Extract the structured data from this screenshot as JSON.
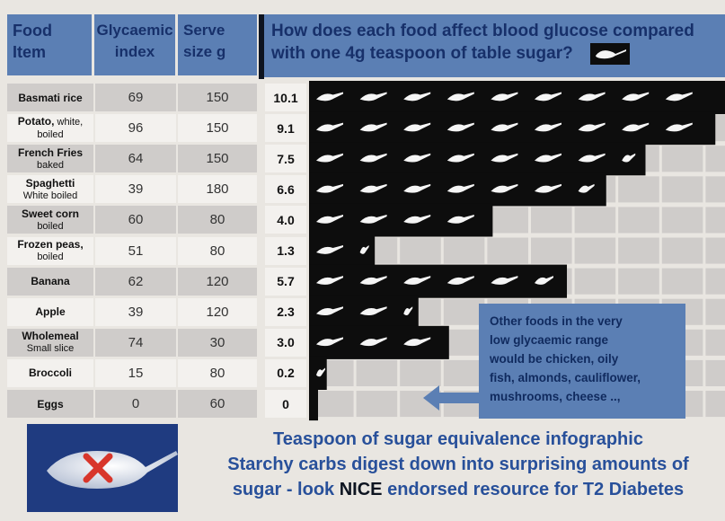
{
  "header": {
    "food_line1": "Food",
    "food_line2": "Item",
    "gi_line1": "Glycaemic",
    "gi_line2": "index",
    "serve_line1": "Serve",
    "serve_line2": "size g",
    "question_line1": "How does each food affect blood glucose compared",
    "question_line2": "with one 4g teaspoon of table sugar?"
  },
  "chart_data": {
    "type": "table",
    "title": "How does each food affect blood glucose compared with one 4g teaspoon of table sugar?",
    "columns": [
      "Food Item",
      "Glycaemic index",
      "Serve size g",
      "Teaspoons of sugar"
    ],
    "rows": [
      {
        "food": "Basmati rice",
        "food_sub": "",
        "gi": "69",
        "serve": "150",
        "teaspoons": 10.1,
        "label": "10.1"
      },
      {
        "food": "Potato,",
        "food_tail": " white,",
        "food_sub": "boiled",
        "gi": "96",
        "serve": "150",
        "teaspoons": 9.1,
        "label": "9.1"
      },
      {
        "food": "French Fries",
        "food_sub": "baked",
        "gi": "64",
        "serve": "150",
        "teaspoons": 7.5,
        "label": "7.5"
      },
      {
        "food": "Spaghetti",
        "food_sub": "White boiled",
        "gi": "39",
        "serve": "180",
        "teaspoons": 6.6,
        "label": "6.6"
      },
      {
        "food": "Sweet corn",
        "food_sub": "boiled",
        "gi": "60",
        "serve": "80",
        "teaspoons": 4.0,
        "label": "4.0"
      },
      {
        "food": "Frozen peas,",
        "food_sub": "boiled",
        "gi": "51",
        "serve": "80",
        "teaspoons": 1.3,
        "label": "1.3"
      },
      {
        "food": "Banana",
        "food_sub": "",
        "gi": "62",
        "serve": "120",
        "teaspoons": 5.7,
        "label": "5.7"
      },
      {
        "food": "Apple",
        "food_sub": "",
        "gi": "39",
        "serve": "120",
        "teaspoons": 2.3,
        "label": "2.3"
      },
      {
        "food": "Wholemeal",
        "food_sub": "Small slice",
        "gi": "74",
        "serve": "30",
        "teaspoons": 3.0,
        "label": "3.0"
      },
      {
        "food": "Broccoli",
        "food_sub": "",
        "gi": "15",
        "serve": "80",
        "teaspoons": 0.2,
        "label": "0.2"
      },
      {
        "food": "Eggs",
        "food_sub": "",
        "gi": "0",
        "serve": "60",
        "teaspoons": 0,
        "label": "0"
      }
    ]
  },
  "callout": {
    "line1": "Other foods in the very",
    "line2": "low glycaemic range",
    "line3": "would be chicken, oily",
    "line4": "fish, almonds, cauliflower,",
    "line5": "mushrooms, cheese ..,"
  },
  "footer": {
    "line1": "Teaspoon of sugar equivalence infographic",
    "line2": "Starchy carbs digest down into surprising amounts of",
    "line3_pre": "sugar - look ",
    "line3_nice": "NICE",
    "line3_post": " endorsed resource for T2 Diabetes"
  },
  "colors": {
    "header_blue": "#5b7fb4",
    "header_text": "#17306a",
    "bar_black": "#0d0d0d",
    "row_light": "#f3f1ee",
    "row_shade": "#cfccca",
    "footer_text": "#28509a",
    "cross_red": "#d8362b"
  },
  "icons": {
    "teaspoon": "teaspoon-of-sugar-icon",
    "arrow": "arrow-left-icon",
    "cross": "red-cross-icon"
  }
}
